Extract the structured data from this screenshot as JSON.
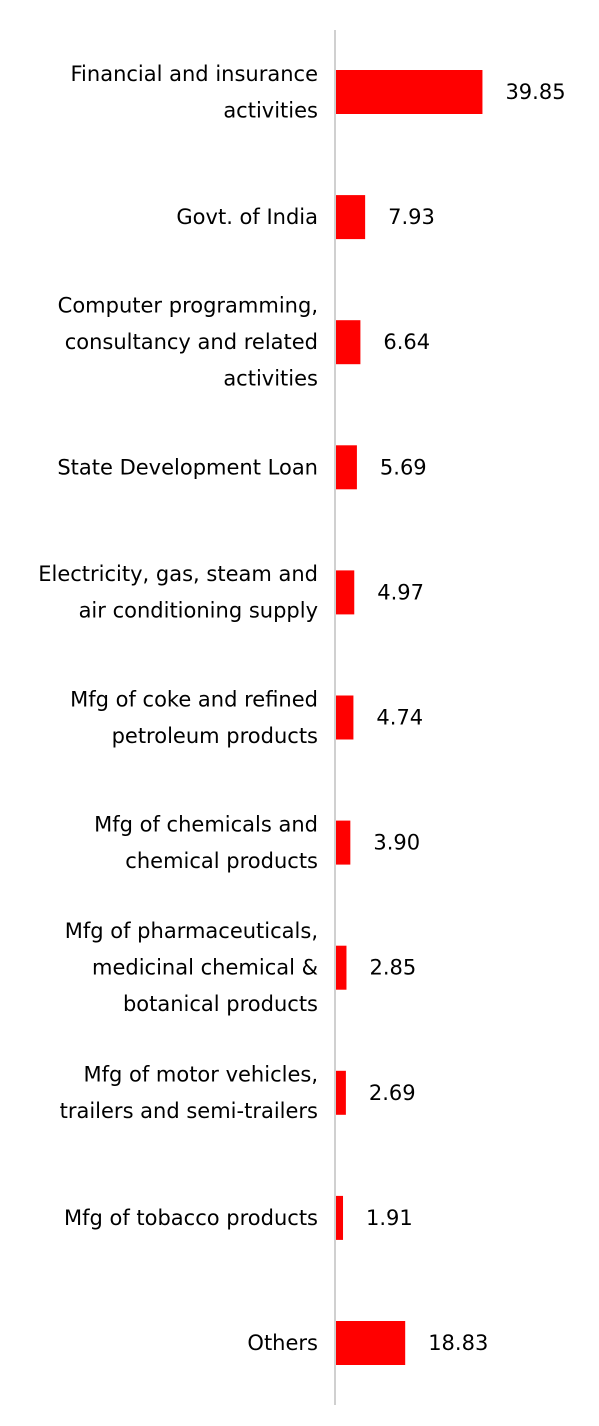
{
  "chart_data": {
    "type": "bar",
    "orientation": "horizontal",
    "categories": [
      "Financial and insurance activities",
      "Govt. of India",
      "Computer programming, consultancy and related activities",
      "State Development Loan",
      "Electricity, gas, steam and air conditioning supply",
      "Mfg of coke and refined petroleum products",
      "Mfg of chemicals and chemical products",
      "Mfg of pharmaceuticals, medicinal chemical & botanical products",
      "Mfg of motor vehicles, trailers and semi-trailers",
      "Mfg of tobacco products",
      "Others"
    ],
    "category_label_lines": [
      [
        "Financial and insurance",
        "activities"
      ],
      [
        "Govt. of India"
      ],
      [
        "Computer programming,",
        "consultancy and related",
        "activities"
      ],
      [
        "State Development Loan"
      ],
      [
        "Electricity, gas, steam and",
        "air conditioning supply"
      ],
      [
        "Mfg of coke and refined",
        "petroleum products"
      ],
      [
        "Mfg of chemicals and",
        "chemical products"
      ],
      [
        "Mfg of pharmaceuticals,",
        "medicinal chemical &",
        "botanical products"
      ],
      [
        "Mfg of motor vehicles,",
        "trailers and semi-trailers"
      ],
      [
        "Mfg of tobacco products"
      ],
      [
        "Others"
      ]
    ],
    "values": [
      39.85,
      7.93,
      6.64,
      5.69,
      4.97,
      4.74,
      3.9,
      2.85,
      2.69,
      1.91,
      18.83
    ],
    "value_labels": [
      "39.85",
      "7.93",
      "6.64",
      "5.69",
      "4.97",
      "4.74",
      "3.90",
      "2.85",
      "2.69",
      "1.91",
      "18.83"
    ],
    "xlim": [
      0,
      40
    ],
    "grid": false,
    "legend": "none",
    "bar_color": "#ff0000",
    "axis_color": "#d0d0d0",
    "text_color": "#000000"
  }
}
